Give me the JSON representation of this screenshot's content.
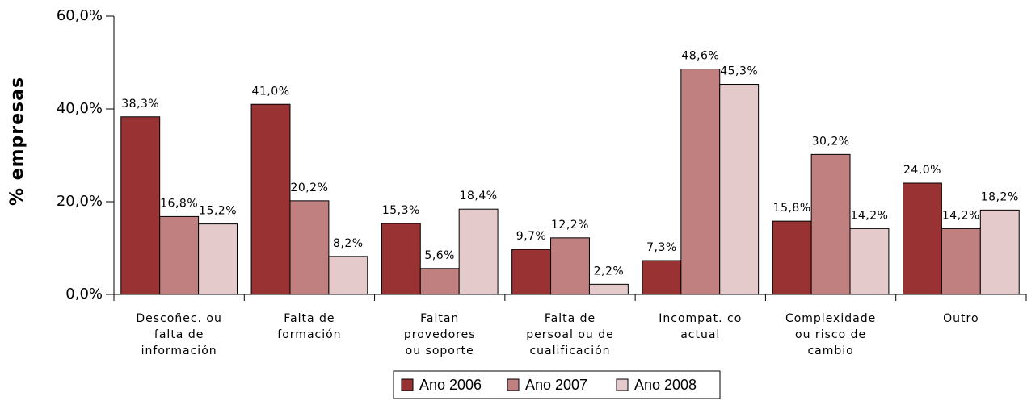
{
  "chart_data": {
    "type": "bar",
    "y_label": "% empresas",
    "categories": [
      [
        "Descoñec. ou",
        "falta de",
        "información"
      ],
      [
        "Falta de",
        "formación"
      ],
      [
        "Faltan",
        "provedores",
        "ou soporte"
      ],
      [
        "Falta de",
        "persoal ou de",
        "cualificación"
      ],
      [
        "Incompat. co",
        "actual"
      ],
      [
        "Complexidade",
        "ou risco de",
        "cambio"
      ],
      [
        "Outro"
      ]
    ],
    "series": [
      {
        "name": "Ano 2006",
        "color": "#993333",
        "values": [
          38.3,
          41.0,
          15.3,
          9.7,
          7.3,
          15.8,
          24.0
        ],
        "value_labels": [
          "38,3%",
          "41,0%",
          "15,3%",
          "9,7%",
          "7,3%",
          "15,8%",
          "24,0%"
        ]
      },
      {
        "name": "Ano 2007",
        "color": "#c08080",
        "values": [
          16.8,
          20.2,
          5.6,
          12.2,
          48.6,
          30.2,
          14.2
        ],
        "value_labels": [
          "16,8%",
          "20,2%",
          "5,6%",
          "12,2%",
          "48,6%",
          "30,2%",
          "14,2%"
        ]
      },
      {
        "name": "Ano 2008",
        "color": "#e4caca",
        "values": [
          15.2,
          8.2,
          18.4,
          2.2,
          45.3,
          14.2,
          18.2
        ],
        "value_labels": [
          "15,2%",
          "8,2%",
          "18,4%",
          "2,2%",
          "45,3%",
          "14,2%",
          "18,2%"
        ]
      }
    ],
    "ylim": [
      0,
      60
    ],
    "yticks": [
      {
        "value": 0,
        "label": "0,0%"
      },
      {
        "value": 20,
        "label": "20,0%"
      },
      {
        "value": 40,
        "label": "40,0%"
      },
      {
        "value": 60,
        "label": "60,0%"
      }
    ],
    "grid": false,
    "legend": "bottom"
  }
}
